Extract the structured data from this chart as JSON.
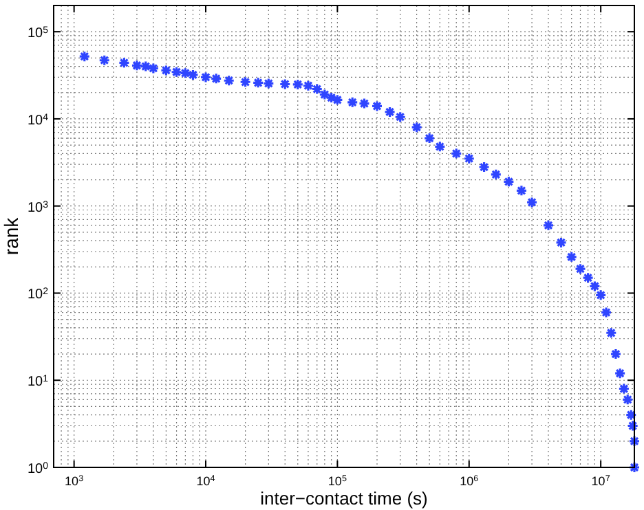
{
  "chart_data": {
    "type": "scatter",
    "xlabel": "inter−contact time (s)",
    "ylabel": "rank",
    "log": "xy",
    "grid": true,
    "marker": "cross",
    "xlim": [
      700,
      18000000
    ],
    "ylim": [
      1,
      200000
    ],
    "xticks": [
      {
        "value": 1000,
        "label": "10$^{3}$"
      },
      {
        "value": 10000,
        "label": "10$^{4}$"
      },
      {
        "value": 100000,
        "label": "10$^{5}$"
      },
      {
        "value": 1000000,
        "label": "10$^{6}$"
      },
      {
        "value": 10000000,
        "label": "10$^{7}$"
      }
    ],
    "yticks": [
      {
        "value": 1,
        "label": "10$^{0}$"
      },
      {
        "value": 10,
        "label": "10$^{1}$"
      },
      {
        "value": 100,
        "label": "10$^{2}$"
      },
      {
        "value": 1000,
        "label": "10$^{3}$"
      },
      {
        "value": 10000,
        "label": "10$^{4}$"
      },
      {
        "value": 100000,
        "label": "10$^{5}$"
      }
    ],
    "series": [
      {
        "color": "#2f45ff",
        "x": [
          1200,
          1700,
          2400,
          3000,
          3500,
          4000,
          5000,
          6000,
          7000,
          8000,
          10000,
          12000,
          15000,
          20000,
          25000,
          30000,
          40000,
          50000,
          60000,
          70000,
          80000,
          90000,
          100000,
          130000,
          160000,
          200000,
          250000,
          300000,
          400000,
          500000,
          600000,
          800000,
          1000000,
          1300000,
          1600000,
          2000000,
          2500000,
          3000000,
          4000000,
          5000000,
          6000000,
          7000000,
          8000000,
          9000000,
          10000000,
          11000000,
          12000000,
          13000000,
          14000000,
          15000000,
          16000000,
          17000000,
          17500000,
          18000000,
          18000000
        ],
        "values": [
          52000,
          47000,
          44000,
          41000,
          40000,
          38000,
          36000,
          34500,
          33500,
          32000,
          30000,
          29000,
          27500,
          26500,
          26000,
          25500,
          25000,
          24800,
          24000,
          22000,
          19000,
          17500,
          16500,
          15500,
          15000,
          14000,
          12000,
          10500,
          8000,
          6000,
          4800,
          4000,
          3500,
          2800,
          2300,
          1900,
          1500,
          1100,
          600,
          380,
          260,
          190,
          150,
          120,
          95,
          60,
          35,
          20,
          12,
          8,
          6,
          4,
          3,
          2,
          1
        ]
      }
    ]
  }
}
